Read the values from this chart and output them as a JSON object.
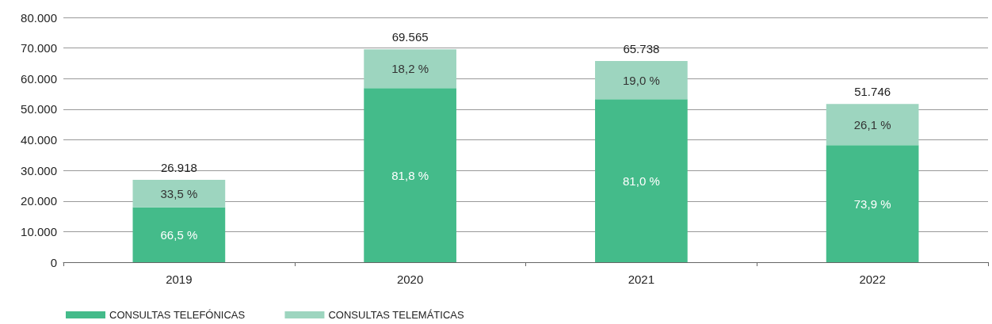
{
  "chart_data": {
    "type": "bar",
    "stacked": true,
    "categories": [
      "2019",
      "2020",
      "2021",
      "2022"
    ],
    "series": [
      {
        "name": "CONSULTAS TELEFÓNICAS",
        "color": "#44bb8a",
        "values": [
          17900,
          56904,
          53248,
          38240
        ]
      },
      {
        "name": "CONSULTAS TELEMÁTICAS",
        "color": "#9dd5bf",
        "values": [
          9018,
          12661,
          12490,
          13506
        ]
      }
    ],
    "totals": [
      "26.918",
      "69.565",
      "65.738",
      "51.746"
    ],
    "annotations": [
      "66,5 %",
      "81,8 %",
      "81,0 %",
      "73,9 %",
      "33,5 %",
      "18,2 %",
      "19,0 %",
      "26,1 %"
    ],
    "ylim": [
      0,
      80000
    ],
    "yticks": [
      {
        "value": 0,
        "label": "0"
      },
      {
        "value": 10000,
        "label": "10.000"
      },
      {
        "value": 20000,
        "label": "20.000"
      },
      {
        "value": 30000,
        "label": "30.000"
      },
      {
        "value": 40000,
        "label": "40.000"
      },
      {
        "value": 50000,
        "label": "50.000"
      },
      {
        "value": 60000,
        "label": "60.000"
      },
      {
        "value": 70000,
        "label": "70.000"
      },
      {
        "value": 80000,
        "label": "80.000"
      }
    ],
    "grid": "y",
    "legend": "bottom left"
  }
}
